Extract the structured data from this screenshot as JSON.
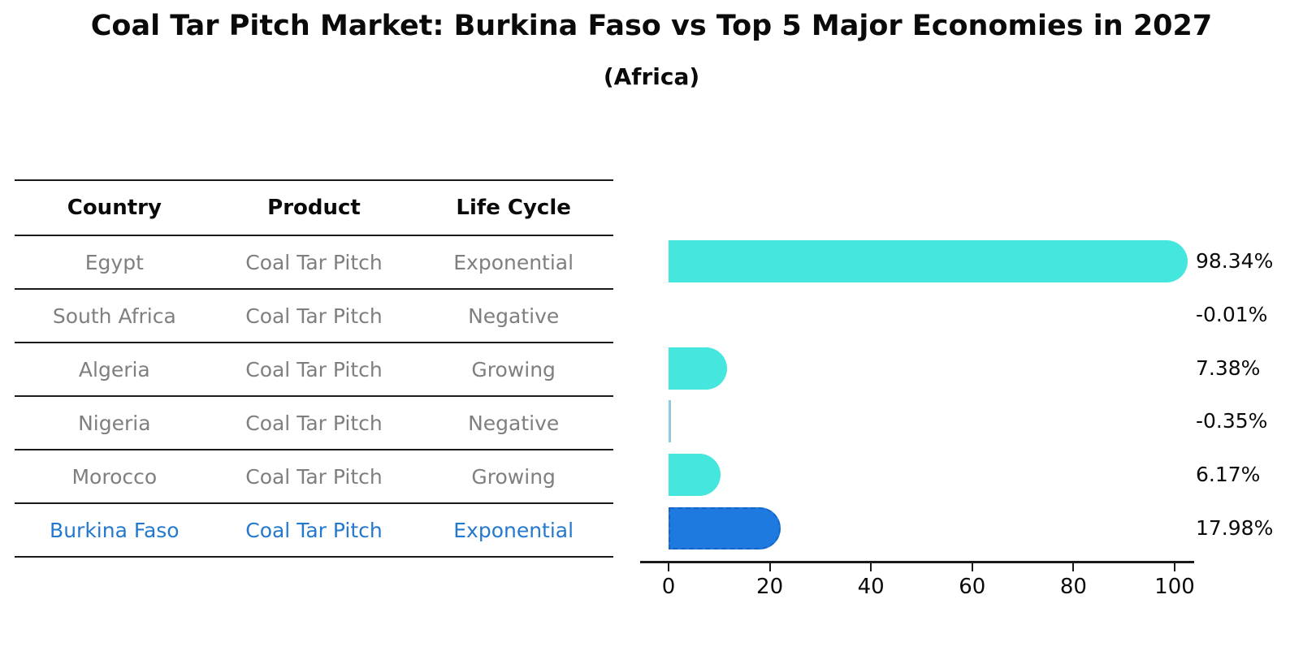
{
  "title": "Coal Tar Pitch Market: Burkina Faso vs Top 5 Major Economies in 2027",
  "subtitle": "(Africa)",
  "table": {
    "headers": [
      "Country",
      "Product",
      "Life Cycle"
    ],
    "rows": [
      {
        "country": "Egypt",
        "product": "Coal Tar Pitch",
        "life_cycle": "Exponential",
        "highlight": false
      },
      {
        "country": "South Africa",
        "product": "Coal Tar Pitch",
        "life_cycle": "Negative",
        "highlight": false
      },
      {
        "country": "Algeria",
        "product": "Coal Tar Pitch",
        "life_cycle": "Growing",
        "highlight": false
      },
      {
        "country": "Nigeria",
        "product": "Coal Tar Pitch",
        "life_cycle": "Negative",
        "highlight": false
      },
      {
        "country": "Morocco",
        "product": "Coal Tar Pitch",
        "life_cycle": "Growing",
        "highlight": false
      },
      {
        "country": "Burkina Faso",
        "product": "Coal Tar Pitch",
        "life_cycle": "Exponential",
        "highlight": true
      }
    ]
  },
  "chart_data": {
    "type": "bar",
    "orientation": "horizontal",
    "title": "Coal Tar Pitch Market: Burkina Faso vs Top 5 Major Economies in 2027 (Africa)",
    "categories": [
      "Egypt",
      "South Africa",
      "Algeria",
      "Nigeria",
      "Morocco",
      "Burkina Faso"
    ],
    "values": [
      98.34,
      -0.01,
      7.38,
      -0.35,
      6.17,
      17.98
    ],
    "value_labels": [
      "98.34%",
      "-0.01%",
      "7.38%",
      "-0.35%",
      "6.17%",
      "17.98%"
    ],
    "x_ticks": [
      0,
      20,
      40,
      60,
      80,
      100
    ],
    "xlim": [
      -6,
      104
    ],
    "grid": false,
    "highlight_index": 5,
    "colors": {
      "bar": "#45e6de",
      "highlight_bar": "#1f7ae0",
      "highlight_border": "#1565c8",
      "negative_sliver": "#8fcadf",
      "highlight_text": "#2479ce",
      "row_text": "#7f7f7f"
    }
  }
}
